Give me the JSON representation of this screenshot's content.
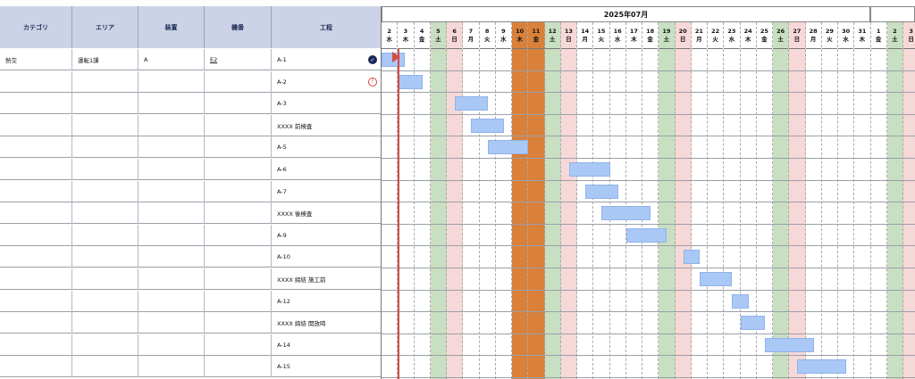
{
  "table": {
    "columns": [
      "カテゴリ",
      "エリア",
      "装置",
      "機番",
      "工程"
    ],
    "rows": [
      {
        "category": "熱交",
        "area": "運転1課",
        "device": "A",
        "machine_no": "E2",
        "process": "A-1",
        "status": "done"
      },
      {
        "category": "",
        "area": "",
        "device": "",
        "machine_no": "",
        "process": "A-2",
        "status": "warning"
      },
      {
        "category": "",
        "area": "",
        "device": "",
        "machine_no": "",
        "process": "A-3",
        "status": ""
      },
      {
        "category": "",
        "area": "",
        "device": "",
        "machine_no": "",
        "process": "XXXX 前検査",
        "status": ""
      },
      {
        "category": "",
        "area": "",
        "device": "",
        "machine_no": "",
        "process": "A-5",
        "status": ""
      },
      {
        "category": "",
        "area": "",
        "device": "",
        "machine_no": "",
        "process": "A-6",
        "status": ""
      },
      {
        "category": "",
        "area": "",
        "device": "",
        "machine_no": "",
        "process": "A-7",
        "status": ""
      },
      {
        "category": "",
        "area": "",
        "device": "",
        "machine_no": "",
        "process": "XXXX 後検査",
        "status": ""
      },
      {
        "category": "",
        "area": "",
        "device": "",
        "machine_no": "",
        "process": "A-9",
        "status": ""
      },
      {
        "category": "",
        "area": "",
        "device": "",
        "machine_no": "",
        "process": "A-10",
        "status": ""
      },
      {
        "category": "",
        "area": "",
        "device": "",
        "machine_no": "",
        "process": "XXXX 締結 施工前",
        "status": ""
      },
      {
        "category": "",
        "area": "",
        "device": "",
        "machine_no": "",
        "process": "A-12",
        "status": ""
      },
      {
        "category": "",
        "area": "",
        "device": "",
        "machine_no": "",
        "process": "XXXX 締結 開放時",
        "status": ""
      },
      {
        "category": "",
        "area": "",
        "device": "",
        "machine_no": "",
        "process": "A-14",
        "status": ""
      },
      {
        "category": "",
        "area": "",
        "device": "",
        "machine_no": "",
        "process": "A-15",
        "status": ""
      }
    ]
  },
  "gantt": {
    "month_label": "2025年07月",
    "days": [
      {
        "d": "2",
        "w": "水",
        "kind": "weekday"
      },
      {
        "d": "3",
        "w": "木",
        "kind": "weekday"
      },
      {
        "d": "4",
        "w": "金",
        "kind": "weekday"
      },
      {
        "d": "5",
        "w": "土",
        "kind": "sat"
      },
      {
        "d": "6",
        "w": "日",
        "kind": "sun"
      },
      {
        "d": "7",
        "w": "月",
        "kind": "weekday"
      },
      {
        "d": "8",
        "w": "火",
        "kind": "weekday"
      },
      {
        "d": "9",
        "w": "水",
        "kind": "weekday"
      },
      {
        "d": "10",
        "w": "木",
        "kind": "highlight"
      },
      {
        "d": "11",
        "w": "金",
        "kind": "highlight"
      },
      {
        "d": "12",
        "w": "土",
        "kind": "sat"
      },
      {
        "d": "13",
        "w": "日",
        "kind": "sun"
      },
      {
        "d": "14",
        "w": "月",
        "kind": "weekday"
      },
      {
        "d": "15",
        "w": "火",
        "kind": "weekday"
      },
      {
        "d": "16",
        "w": "水",
        "kind": "weekday"
      },
      {
        "d": "17",
        "w": "木",
        "kind": "weekday"
      },
      {
        "d": "18",
        "w": "金",
        "kind": "weekday"
      },
      {
        "d": "19",
        "w": "土",
        "kind": "sat"
      },
      {
        "d": "20",
        "w": "日",
        "kind": "sun"
      },
      {
        "d": "21",
        "w": "月",
        "kind": "weekday"
      },
      {
        "d": "22",
        "w": "火",
        "kind": "weekday"
      },
      {
        "d": "23",
        "w": "水",
        "kind": "weekday"
      },
      {
        "d": "24",
        "w": "木",
        "kind": "weekday"
      },
      {
        "d": "25",
        "w": "金",
        "kind": "weekday"
      },
      {
        "d": "26",
        "w": "土",
        "kind": "sat"
      },
      {
        "d": "27",
        "w": "日",
        "kind": "sun"
      },
      {
        "d": "28",
        "w": "月",
        "kind": "weekday"
      },
      {
        "d": "29",
        "w": "火",
        "kind": "weekday"
      },
      {
        "d": "30",
        "w": "水",
        "kind": "weekday"
      },
      {
        "d": "31",
        "w": "木",
        "kind": "weekday"
      },
      {
        "d": "1",
        "w": "金",
        "kind": "weekday"
      },
      {
        "d": "2",
        "w": "土",
        "kind": "sat"
      },
      {
        "d": "3",
        "w": "日",
        "kind": "sun"
      }
    ],
    "bars": [
      {
        "row": 0,
        "start": 0,
        "end": 1.4
      },
      {
        "row": 1,
        "start": 1.05,
        "end": 2.5
      },
      {
        "row": 2,
        "start": 4.5,
        "end": 6.5
      },
      {
        "row": 3,
        "start": 5.5,
        "end": 7.5
      },
      {
        "row": 4,
        "start": 6.5,
        "end": 9.0
      },
      {
        "row": 5,
        "start": 11.5,
        "end": 14.0
      },
      {
        "row": 6,
        "start": 12.5,
        "end": 14.5
      },
      {
        "row": 7,
        "start": 13.5,
        "end": 16.5
      },
      {
        "row": 8,
        "start": 15.0,
        "end": 17.5
      },
      {
        "row": 9,
        "start": 18.5,
        "end": 19.5
      },
      {
        "row": 10,
        "start": 19.5,
        "end": 21.5
      },
      {
        "row": 11,
        "start": 21.5,
        "end": 22.5
      },
      {
        "row": 12,
        "start": 22.0,
        "end": 23.5
      },
      {
        "row": 13,
        "start": 23.5,
        "end": 26.5
      },
      {
        "row": 14,
        "start": 25.5,
        "end": 28.5
      }
    ],
    "colors": {
      "sat": "#c9dfc2",
      "sun": "#f7d8d8",
      "highlight": "#d9803a",
      "weekday": "#ffffff",
      "today": "#d44b45",
      "header": "#cdd3e6"
    }
  }
}
